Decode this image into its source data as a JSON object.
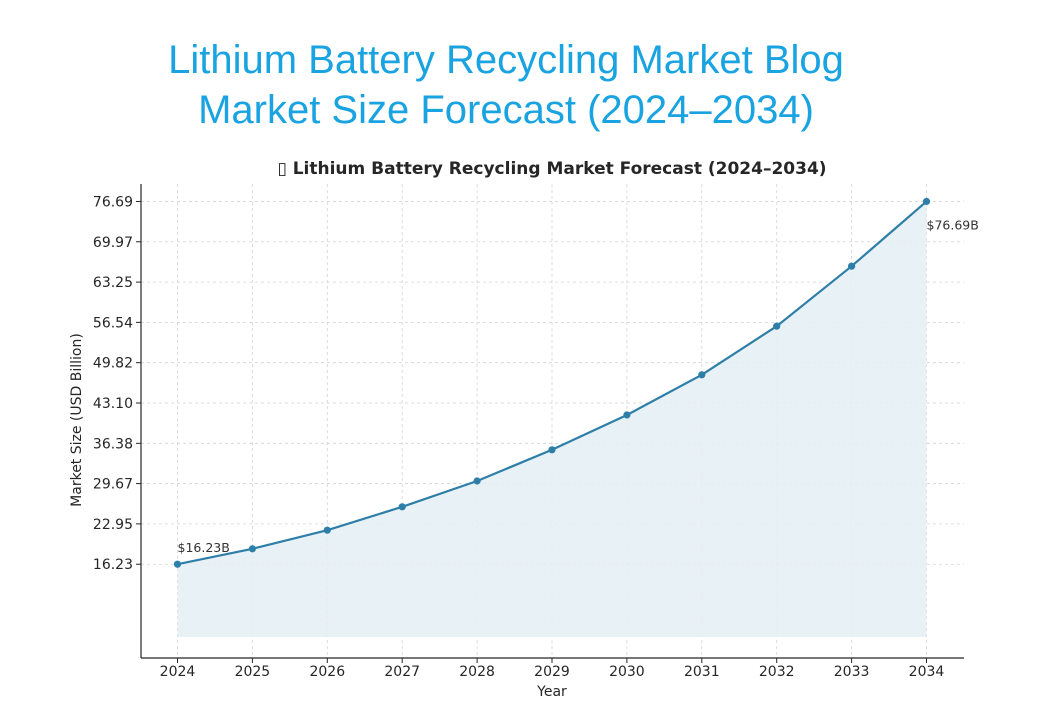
{
  "page": {
    "title_line1": "Lithium Battery Recycling Market Blog",
    "title_line2": "Market Size Forecast (2024–2034)"
  },
  "chart_data": {
    "type": "area",
    "title": "▯ Lithium Battery Recycling Market Forecast (2024–2034)",
    "xlabel": "Year",
    "ylabel": "Market Size (USD Billion)",
    "x": [
      "2024",
      "2025",
      "2026",
      "2027",
      "2028",
      "2029",
      "2030",
      "2031",
      "2032",
      "2033",
      "2034"
    ],
    "series": [
      {
        "values": [
          16.23,
          18.8,
          21.9,
          25.8,
          30.1,
          35.3,
          41.1,
          47.8,
          55.9,
          65.9,
          76.69
        ]
      }
    ],
    "yticks": [
      "16.23",
      "22.95",
      "29.67",
      "36.38",
      "43.10",
      "49.82",
      "56.54",
      "63.25",
      "69.97",
      "76.69"
    ],
    "ylim": [
      0.6,
      79.6
    ],
    "annotations": [
      "$16.23B",
      "$76.69B"
    ],
    "grid": true,
    "colors": {
      "line": "#2e7fa8",
      "fill": "#e6eff5",
      "grid": "#d4d4d4"
    }
  }
}
